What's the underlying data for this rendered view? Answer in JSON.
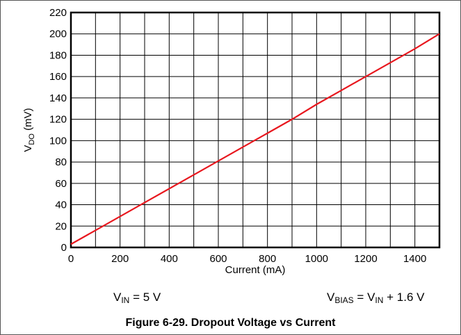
{
  "chart_data": {
    "type": "line",
    "xlabel": "Current (mA)",
    "ylabel": {
      "base": "V",
      "sub": "DO",
      "rest": " (mV)"
    },
    "xlim": [
      0,
      1500
    ],
    "ylim": [
      0,
      220
    ],
    "x_ticks": [
      0,
      200,
      400,
      600,
      800,
      1000,
      1200,
      1400
    ],
    "y_ticks": [
      0,
      20,
      40,
      60,
      80,
      100,
      120,
      140,
      160,
      180,
      200,
      220
    ],
    "x_grid_step": 100,
    "y_grid_step": 20,
    "grid": true,
    "series": [
      {
        "color": "#e8171e",
        "x": [
          0,
          100,
          200,
          300,
          400,
          500,
          600,
          700,
          800,
          900,
          1000,
          1100,
          1200,
          1300,
          1400,
          1500
        ],
        "y": [
          3,
          16,
          29,
          42,
          55,
          68,
          81,
          94,
          107,
          120,
          134,
          147,
          160,
          173,
          186,
          200
        ]
      }
    ]
  },
  "conditions": {
    "left": {
      "v": "V",
      "sub": "IN",
      "rest": " = 5 V"
    },
    "right": {
      "v1": "V",
      "sub1": "BIAS",
      "eq": " = V",
      "sub2": "IN",
      "rest": " + 1.6 V"
    }
  },
  "caption": "Figure 6-29. Dropout Voltage vs Current"
}
